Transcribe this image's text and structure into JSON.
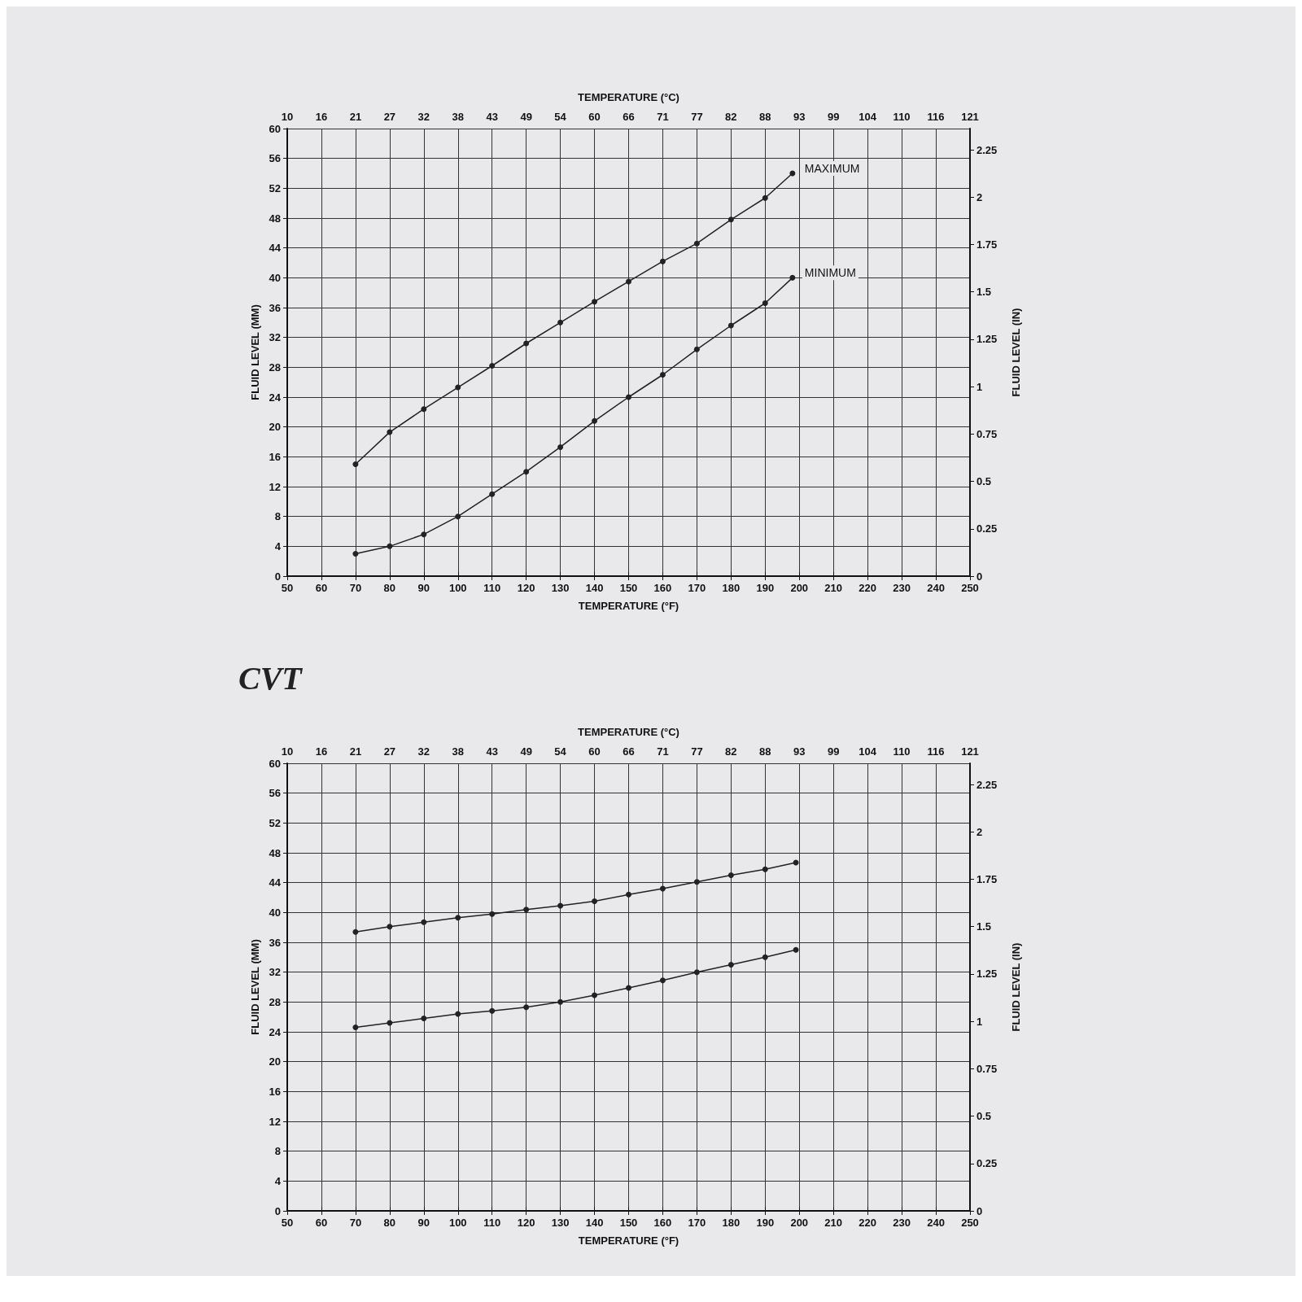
{
  "chart_data": [
    {
      "type": "line",
      "x2label": "TEMPERATURE (°C)",
      "xlabel": "TEMPERATURE (°F)",
      "ylabel": "FLUID LEVEL (MM)",
      "y2label": "FLUID LEVEL (IN)",
      "xlim": [
        50,
        250
      ],
      "xticks": [
        50,
        60,
        70,
        80,
        90,
        100,
        110,
        120,
        130,
        140,
        150,
        160,
        170,
        180,
        190,
        200,
        210,
        220,
        230,
        240,
        250
      ],
      "x2lim": [
        10,
        121.11
      ],
      "x2ticks": [
        {
          "value": 10,
          "label": "10"
        },
        {
          "value": 15.56,
          "label": "16"
        },
        {
          "value": 21.11,
          "label": "21"
        },
        {
          "value": 26.67,
          "label": "27"
        },
        {
          "value": 32.22,
          "label": "32"
        },
        {
          "value": 37.78,
          "label": "38"
        },
        {
          "value": 43.33,
          "label": "43"
        },
        {
          "value": 48.89,
          "label": "49"
        },
        {
          "value": 54.44,
          "label": "54"
        },
        {
          "value": 60,
          "label": "60"
        },
        {
          "value": 65.56,
          "label": "66"
        },
        {
          "value": 71.11,
          "label": "71"
        },
        {
          "value": 76.67,
          "label": "77"
        },
        {
          "value": 82.22,
          "label": "82"
        },
        {
          "value": 87.78,
          "label": "88"
        },
        {
          "value": 93.33,
          "label": "93"
        },
        {
          "value": 98.89,
          "label": "99"
        },
        {
          "value": 104.44,
          "label": "104"
        },
        {
          "value": 110,
          "label": "110"
        },
        {
          "value": 115.56,
          "label": "116"
        },
        {
          "value": 121.11,
          "label": "121"
        }
      ],
      "ylim": [
        0,
        60
      ],
      "yticks": [
        0,
        4,
        8,
        12,
        16,
        20,
        24,
        28,
        32,
        36,
        40,
        44,
        48,
        52,
        56,
        60
      ],
      "y2lim": [
        0,
        2.362
      ],
      "y2ticks": [
        0,
        0.25,
        0.5,
        0.75,
        1,
        1.25,
        1.5,
        1.75,
        2,
        2.25
      ],
      "grid": true,
      "marker": "circle",
      "line_style": "solid",
      "series": [
        {
          "name": "MAXIMUM",
          "color": "#222222",
          "x": [
            70,
            80,
            90,
            100,
            110,
            120,
            130,
            140,
            150,
            160,
            170,
            180,
            190,
            198
          ],
          "values": [
            15,
            19.3,
            22.4,
            25.3,
            28.2,
            31.2,
            34,
            36.8,
            39.5,
            42.2,
            44.6,
            47.8,
            50.7,
            54
          ]
        },
        {
          "name": "MINIMUM",
          "color": "#222222",
          "x": [
            70,
            80,
            90,
            100,
            110,
            120,
            130,
            140,
            150,
            160,
            170,
            180,
            190,
            198
          ],
          "values": [
            3,
            4,
            5.6,
            8,
            11,
            14,
            17.3,
            20.8,
            24,
            27,
            30.4,
            33.6,
            36.6,
            40
          ]
        }
      ]
    },
    {
      "type": "line",
      "title": "CVT",
      "x2label": "TEMPERATURE (°C)",
      "xlabel": "TEMPERATURE (°F)",
      "ylabel": "FLUID LEVEL (MM)",
      "y2label": "FLUID LEVEL (IN)",
      "xlim": [
        50,
        250
      ],
      "xticks": [
        50,
        60,
        70,
        80,
        90,
        100,
        110,
        120,
        130,
        140,
        150,
        160,
        170,
        180,
        190,
        200,
        210,
        220,
        230,
        240,
        250
      ],
      "x2lim": [
        10,
        121.11
      ],
      "x2ticks": [
        {
          "value": 10,
          "label": "10"
        },
        {
          "value": 15.56,
          "label": "16"
        },
        {
          "value": 21.11,
          "label": "21"
        },
        {
          "value": 26.67,
          "label": "27"
        },
        {
          "value": 32.22,
          "label": "32"
        },
        {
          "value": 37.78,
          "label": "38"
        },
        {
          "value": 43.33,
          "label": "43"
        },
        {
          "value": 48.89,
          "label": "49"
        },
        {
          "value": 54.44,
          "label": "54"
        },
        {
          "value": 60,
          "label": "60"
        },
        {
          "value": 65.56,
          "label": "66"
        },
        {
          "value": 71.11,
          "label": "71"
        },
        {
          "value": 76.67,
          "label": "77"
        },
        {
          "value": 82.22,
          "label": "82"
        },
        {
          "value": 87.78,
          "label": "88"
        },
        {
          "value": 93.33,
          "label": "93"
        },
        {
          "value": 98.89,
          "label": "99"
        },
        {
          "value": 104.44,
          "label": "104"
        },
        {
          "value": 110,
          "label": "110"
        },
        {
          "value": 115.56,
          "label": "116"
        },
        {
          "value": 121.11,
          "label": "121"
        }
      ],
      "ylim": [
        0,
        60
      ],
      "yticks": [
        0,
        4,
        8,
        12,
        16,
        20,
        24,
        28,
        32,
        36,
        40,
        44,
        48,
        52,
        56,
        60
      ],
      "y2lim": [
        0,
        2.362
      ],
      "y2ticks": [
        0,
        0.25,
        0.5,
        0.75,
        1,
        1.25,
        1.5,
        1.75,
        2,
        2.25
      ],
      "grid": true,
      "marker": "circle",
      "line_style": "solid",
      "series": [
        {
          "color": "#222222",
          "x": [
            70,
            80,
            90,
            100,
            110,
            120,
            130,
            140,
            150,
            160,
            170,
            180,
            190,
            199
          ],
          "values": [
            37.4,
            38.1,
            38.7,
            39.3,
            39.8,
            40.4,
            40.9,
            41.5,
            42.4,
            43.2,
            44.1,
            45,
            45.8,
            46.7
          ]
        },
        {
          "color": "#222222",
          "x": [
            70,
            80,
            90,
            100,
            110,
            120,
            130,
            140,
            150,
            160,
            170,
            180,
            190,
            199
          ],
          "values": [
            24.6,
            25.2,
            25.8,
            26.4,
            26.8,
            27.3,
            28,
            28.9,
            29.9,
            30.9,
            32,
            33,
            34,
            35
          ]
        }
      ]
    }
  ]
}
